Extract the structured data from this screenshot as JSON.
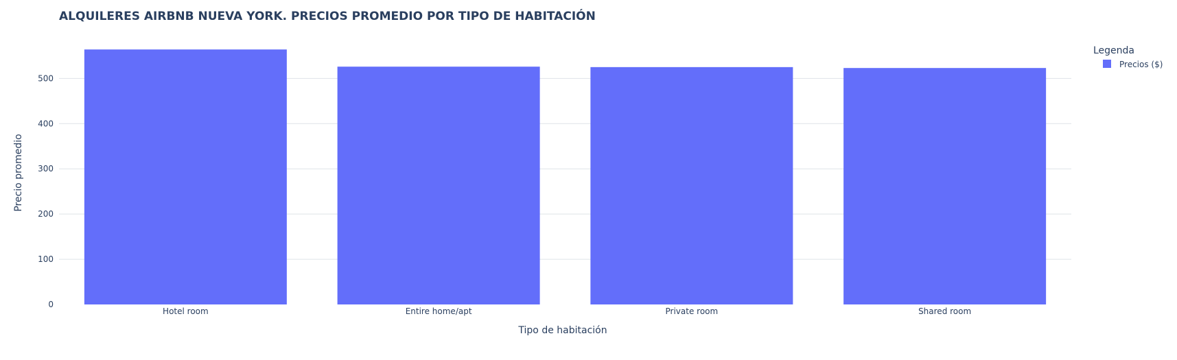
{
  "chart_data": {
    "type": "bar",
    "title": "ALQUILERES AIRBNB NUEVA YORK. PRECIOS PROMEDIO POR TIPO DE HABITACIÓN",
    "xlabel": "Tipo de habitación",
    "ylabel": "Precio promedio",
    "categories": [
      "Hotel room",
      "Entire home/apt",
      "Private room",
      "Shared room"
    ],
    "series": [
      {
        "name": "Precios ($)",
        "values": [
          564,
          526,
          525,
          523
        ]
      }
    ],
    "ylim": [
      0,
      590
    ],
    "yticks": [
      0,
      100,
      200,
      300,
      400,
      500
    ],
    "grid": true,
    "legend": {
      "title": "Legenda",
      "placement": "top-right"
    },
    "colors": {
      "bar": "#636efa",
      "grid": "#dfe3e8",
      "text": "#2a3f5f"
    }
  }
}
